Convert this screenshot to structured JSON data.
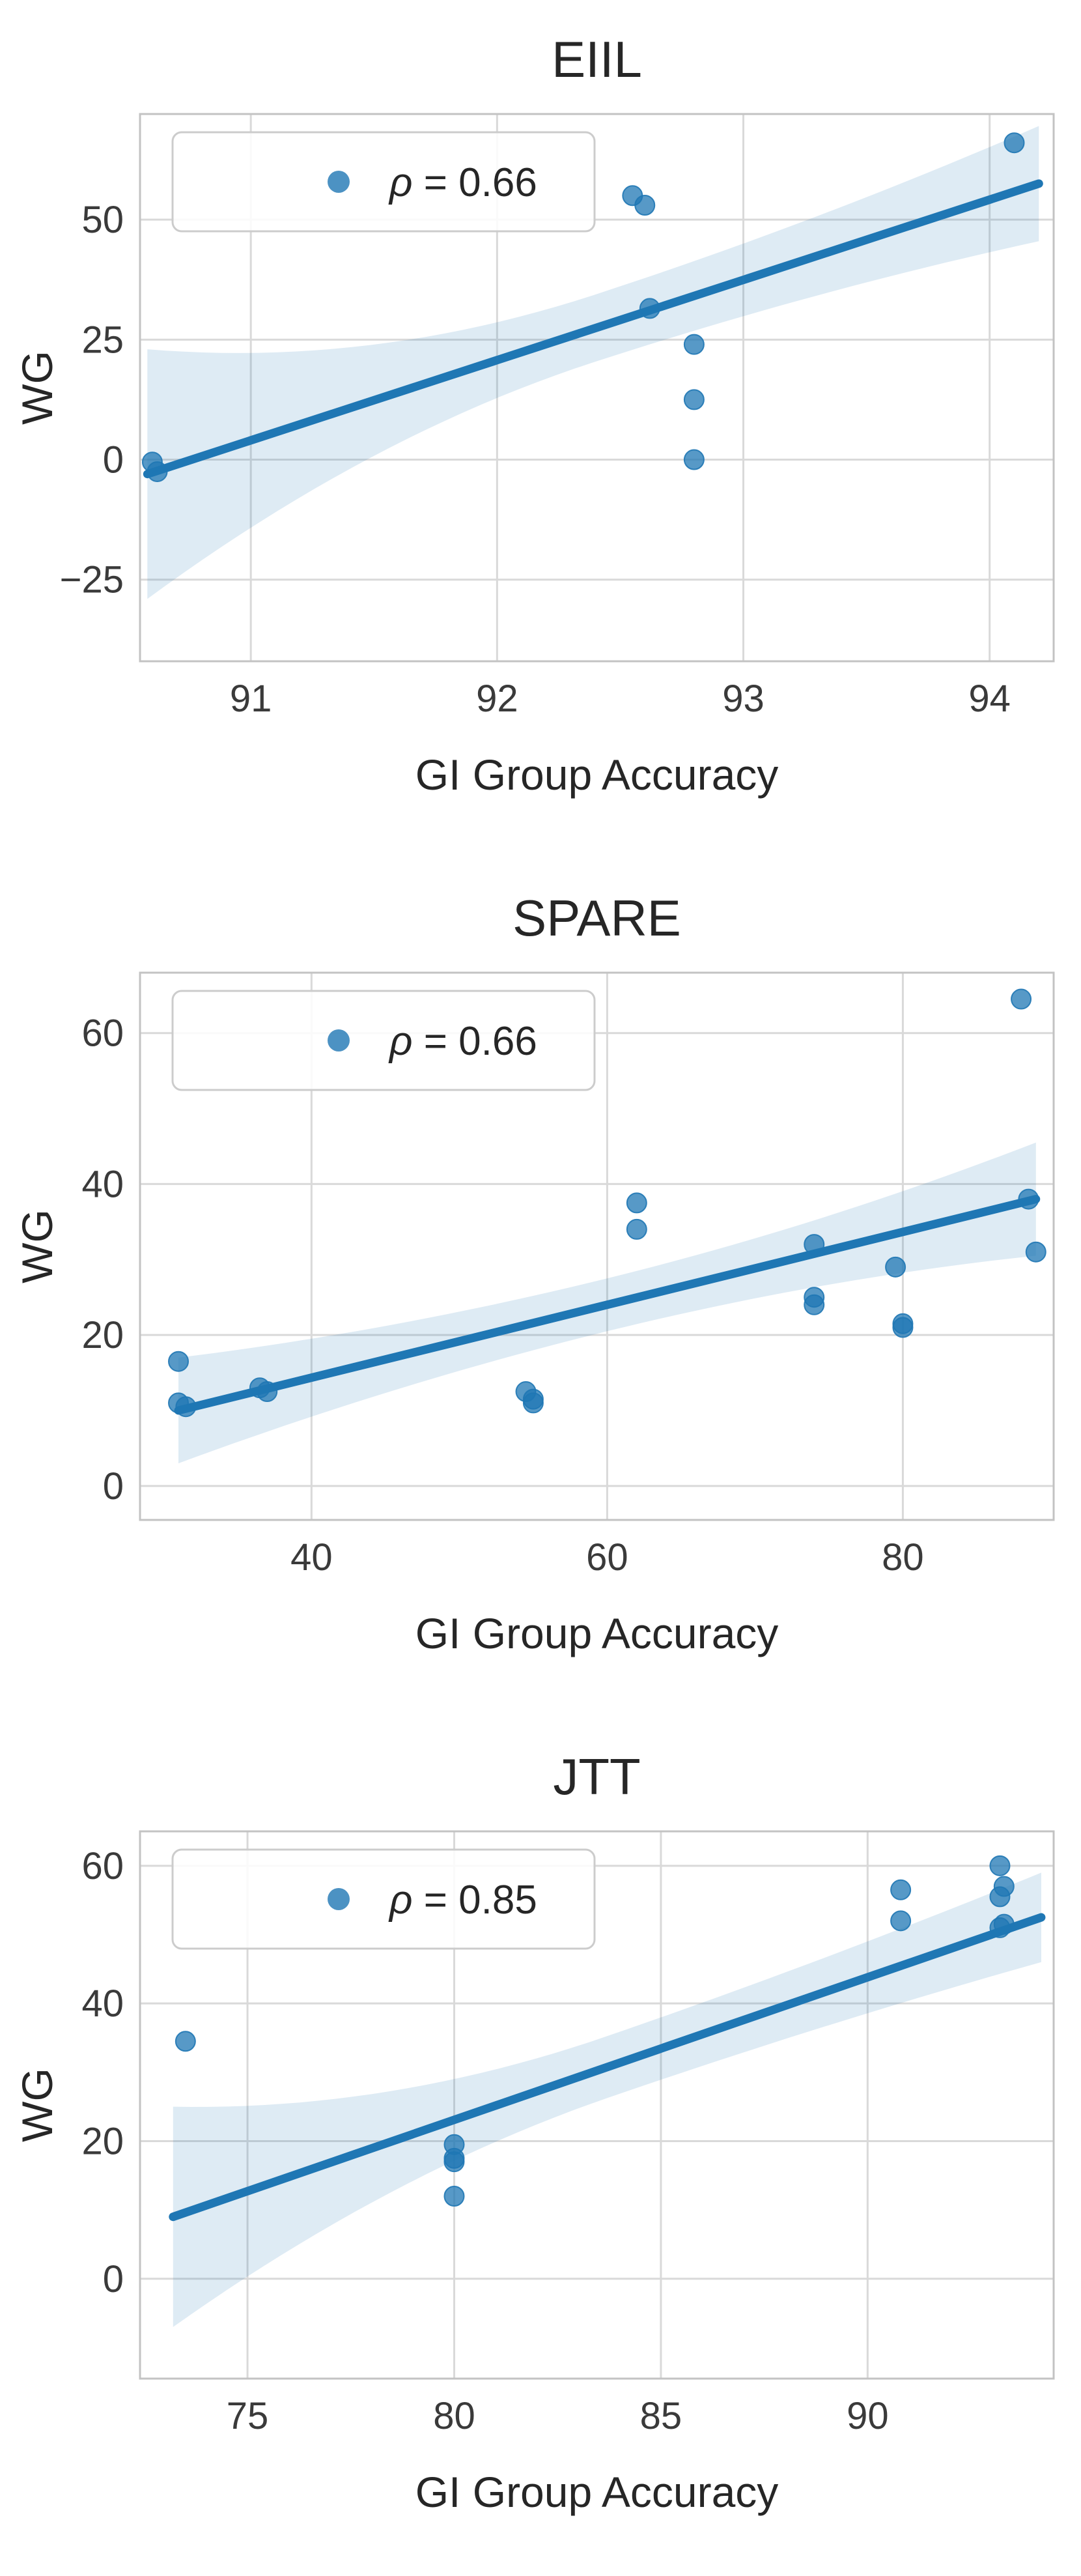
{
  "style": {
    "accent": "#1f77b4",
    "band_color": "#1f77b4",
    "band_opacity": 0.15,
    "grid_color": "#d9d9d9",
    "spine_color": "#c3c3c3",
    "tick_color": "#3a3a3a",
    "text_color": "#262626",
    "legend_border": "#cccccc",
    "background": "#ffffff"
  },
  "chart_data": [
    {
      "type": "scatter",
      "title": "EIIL",
      "xlabel": "GI Group Accuracy",
      "ylabel": "WG",
      "grid": true,
      "legend_position": "upper left",
      "legend": {
        "symbol": "ρ",
        "rest": "= 0.66",
        "label": "ρ = 0.66",
        "rho": 0.66
      },
      "xlim": [
        90.55,
        94.26
      ],
      "ylim": [
        -42,
        72
      ],
      "xticks": [
        91,
        92,
        93,
        94
      ],
      "yticks": [
        -25,
        0,
        25,
        50
      ],
      "points": [
        [
          90.6,
          -0.5
        ],
        [
          90.62,
          -2.5
        ],
        [
          92.55,
          55
        ],
        [
          92.6,
          53
        ],
        [
          92.62,
          31.5
        ],
        [
          92.8,
          24
        ],
        [
          92.8,
          12.5
        ],
        [
          92.8,
          0
        ],
        [
          94.1,
          66
        ]
      ],
      "regression": {
        "x1": 90.58,
        "y1": -3.0,
        "x2": 94.2,
        "y2": 57.5
      },
      "band": {
        "left": 26,
        "mid": 7,
        "right": 12
      }
    },
    {
      "type": "scatter",
      "title": "SPARE",
      "xlabel": "GI Group Accuracy",
      "ylabel": "WG",
      "grid": true,
      "legend_position": "upper left",
      "legend": {
        "symbol": "ρ",
        "rest": "= 0.66",
        "label": "ρ = 0.66",
        "rho": 0.66
      },
      "xlim": [
        28.4,
        90.2
      ],
      "ylim": [
        -4.5,
        68
      ],
      "xticks": [
        40,
        60,
        80
      ],
      "yticks": [
        0,
        20,
        40,
        60
      ],
      "points": [
        [
          31,
          16.5
        ],
        [
          31,
          11
        ],
        [
          31.5,
          10.5
        ],
        [
          36.5,
          13
        ],
        [
          37,
          12.5
        ],
        [
          54.5,
          12.5
        ],
        [
          55,
          11.5
        ],
        [
          55,
          11
        ],
        [
          62,
          37.5
        ],
        [
          62,
          34
        ],
        [
          74,
          32
        ],
        [
          74,
          25
        ],
        [
          74,
          24
        ],
        [
          79.5,
          29
        ],
        [
          80,
          21.5
        ],
        [
          80,
          21
        ],
        [
          88,
          64.5
        ],
        [
          88.5,
          38
        ],
        [
          89,
          31
        ]
      ],
      "regression": {
        "x1": 31,
        "y1": 10,
        "x2": 89,
        "y2": 38
      },
      "band": {
        "left": 7,
        "mid": 3.5,
        "right": 7.5
      }
    },
    {
      "type": "scatter",
      "title": "JTT",
      "xlabel": "GI Group Accuracy",
      "ylabel": "WG",
      "grid": true,
      "legend_position": "upper left",
      "legend": {
        "symbol": "ρ",
        "rest": "= 0.85",
        "label": "ρ = 0.85",
        "rho": 0.85
      },
      "xlim": [
        72.4,
        94.5
      ],
      "ylim": [
        -14.5,
        65
      ],
      "xticks": [
        75,
        80,
        85,
        90
      ],
      "yticks": [
        0,
        20,
        40,
        60
      ],
      "points": [
        [
          73.5,
          34.5
        ],
        [
          80,
          19.5
        ],
        [
          80,
          17.5
        ],
        [
          80,
          17
        ],
        [
          80,
          12
        ],
        [
          90.8,
          56.5
        ],
        [
          90.8,
          52
        ],
        [
          93.2,
          60
        ],
        [
          93.3,
          57
        ],
        [
          93.2,
          55.5
        ],
        [
          93.3,
          51.5
        ],
        [
          93.2,
          51
        ]
      ],
      "regression": {
        "x1": 73.2,
        "y1": 9,
        "x2": 94.2,
        "y2": 52.5
      },
      "band": {
        "left": 16,
        "mid": 4.5,
        "right": 6.5
      }
    }
  ]
}
